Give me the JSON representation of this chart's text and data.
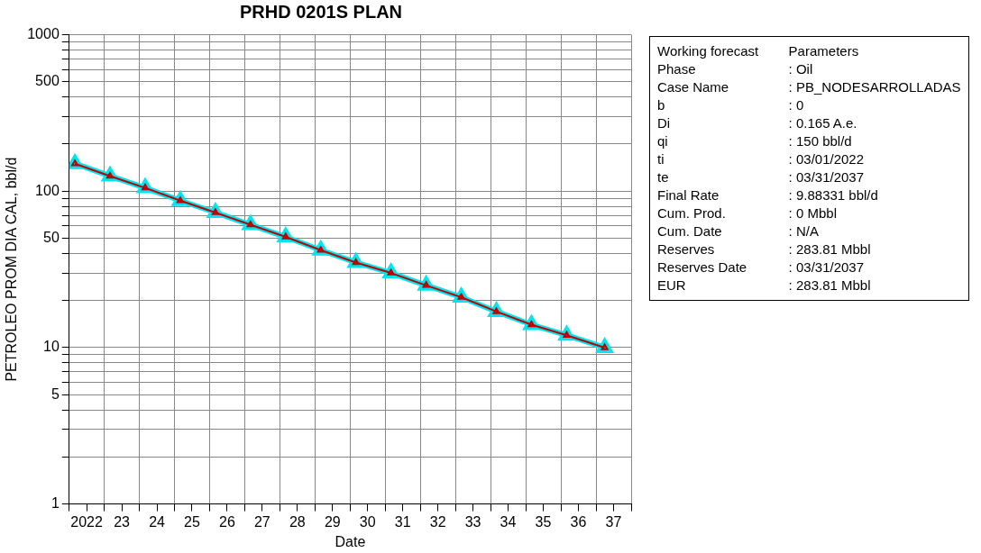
{
  "chart_data": {
    "type": "line",
    "title": "PRHD 0201S PLAN",
    "xlabel": "Date",
    "ylabel": "PETROLEO PROM DIA CAL, bbl/d",
    "x": [
      "2022-03-01",
      "2023-03-01",
      "2024-03-01",
      "2025-03-01",
      "2026-03-01",
      "2027-03-01",
      "2028-03-01",
      "2029-03-01",
      "2030-03-01",
      "2031-03-01",
      "2032-03-01",
      "2033-03-01",
      "2034-03-01",
      "2035-03-01",
      "2036-03-01",
      "2037-03-31"
    ],
    "series": [
      {
        "color": "#00e5ee",
        "marker": "triangle",
        "values": [
          150,
          125,
          105,
          87,
          73,
          61,
          51,
          42,
          35,
          30,
          25,
          21,
          17,
          14,
          12,
          10
        ]
      },
      {
        "color": "#c00000",
        "marker": "triangle",
        "values": [
          150,
          125,
          105,
          87,
          73,
          61,
          51,
          42,
          35,
          30,
          25,
          21,
          17,
          14,
          12,
          10
        ]
      }
    ],
    "log": "y",
    "grid": true,
    "ylim": [
      1,
      1000
    ],
    "yticks": [
      1,
      {
        "value": 2,
        "label": null
      },
      {
        "value": 3,
        "label": null
      },
      {
        "value": 4,
        "label": null
      },
      5,
      {
        "value": 6,
        "label": null
      },
      {
        "value": 7,
        "label": null
      },
      {
        "value": 8,
        "label": null
      },
      {
        "value": 9,
        "label": null
      },
      10,
      {
        "value": 20,
        "label": null
      },
      {
        "value": 30,
        "label": null
      },
      {
        "value": 40,
        "label": null
      },
      50,
      {
        "value": 60,
        "label": null
      },
      {
        "value": 70,
        "label": null
      },
      {
        "value": 80,
        "label": null
      },
      {
        "value": 90,
        "label": null
      },
      100,
      {
        "value": 200,
        "label": null
      },
      {
        "value": 300,
        "label": null
      },
      {
        "value": 400,
        "label": null
      },
      500,
      {
        "value": 600,
        "label": null
      },
      {
        "value": 700,
        "label": null
      },
      {
        "value": 800,
        "label": null
      },
      {
        "value": 900,
        "label": null
      },
      1000
    ],
    "xlim": [
      "2022-01-01",
      "2038-01-01"
    ],
    "xticks": [
      {
        "value": "2022-01-01",
        "label": null
      },
      {
        "value": "2022-07-01",
        "label": "2022"
      },
      {
        "value": "2023-01-01",
        "label": null
      },
      {
        "value": "2023-07-01",
        "label": "23"
      },
      {
        "value": "2024-01-01",
        "label": null
      },
      {
        "value": "2024-07-01",
        "label": "24"
      },
      {
        "value": "2025-01-01",
        "label": null
      },
      {
        "value": "2025-07-01",
        "label": "25"
      },
      {
        "value": "2026-01-01",
        "label": null
      },
      {
        "value": "2026-07-01",
        "label": "26"
      },
      {
        "value": "2027-01-01",
        "label": null
      },
      {
        "value": "2027-07-01",
        "label": "27"
      },
      {
        "value": "2028-01-01",
        "label": null
      },
      {
        "value": "2028-07-01",
        "label": "28"
      },
      {
        "value": "2029-01-01",
        "label": null
      },
      {
        "value": "2029-07-01",
        "label": "29"
      },
      {
        "value": "2030-01-01",
        "label": null
      },
      {
        "value": "2030-07-01",
        "label": "30"
      },
      {
        "value": "2031-01-01",
        "label": null
      },
      {
        "value": "2031-07-01",
        "label": "31"
      },
      {
        "value": "2032-01-01",
        "label": null
      },
      {
        "value": "2032-07-01",
        "label": "32"
      },
      {
        "value": "2033-01-01",
        "label": null
      },
      {
        "value": "2033-07-01",
        "label": "33"
      },
      {
        "value": "2034-01-01",
        "label": null
      },
      {
        "value": "2034-07-01",
        "label": "34"
      },
      {
        "value": "2035-01-01",
        "label": null
      },
      {
        "value": "2035-07-01",
        "label": "35"
      },
      {
        "value": "2036-01-01",
        "label": null
      },
      {
        "value": "2036-07-01",
        "label": "36"
      },
      {
        "value": "2037-01-01",
        "label": null
      },
      {
        "value": "2037-07-01",
        "label": "37"
      },
      {
        "value": "2038-01-01",
        "label": null
      }
    ],
    "annotations": [
      "Working forecast\tParameters",
      "Phase\t: Oil",
      "Case Name\t: PB_NODESARROLLADAS",
      "b\t: 0",
      "Di\t: 0.165 A.e.",
      "qi\t: 150 bbl/d",
      "ti\t: 03/01/2022",
      "te\t: 03/31/2037",
      "Final Rate\t: 9.88331 bbl/d",
      "Cum. Prod.\t: 0 Mbbl",
      "Cum. Date\t: N/A",
      "Reserves\t: 283.81 Mbbl",
      "Reserves Date\t: 03/31/2037",
      "EUR\t: 283.81 Mbbl"
    ]
  }
}
